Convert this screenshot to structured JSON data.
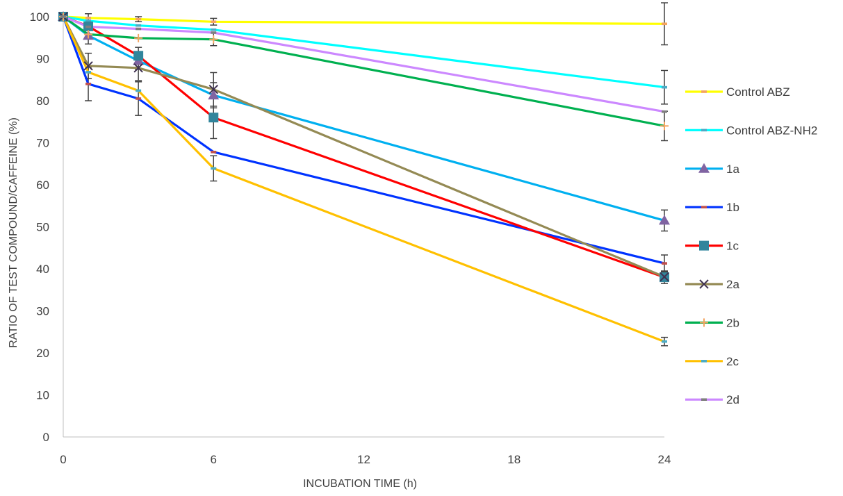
{
  "chart_data": {
    "type": "line",
    "title": "",
    "xlabel": "INCUBATION TIME (h)",
    "ylabel": "RATIO OF TEST COMPOUND/CAFFEINE (%)",
    "xlim": [
      0,
      24
    ],
    "ylim": [
      0,
      100
    ],
    "xticks": [
      0,
      6,
      12,
      18,
      24
    ],
    "yticks": [
      0,
      10,
      20,
      30,
      40,
      50,
      60,
      70,
      80,
      90,
      100
    ],
    "grid": false,
    "legend_position": "right",
    "x": [
      0,
      1,
      3,
      6,
      24
    ],
    "series": [
      {
        "name": "Control ABZ",
        "color": "#FFFF00",
        "marker": "dash",
        "marker_color": "#F4A460",
        "values": [
          100,
          99.7,
          99.4,
          98.8,
          98.3
        ],
        "errors": [
          0,
          0,
          0.6,
          0.8,
          5
        ]
      },
      {
        "name": "Control ABZ-NH2",
        "color": "#00FFFF",
        "marker": "dash",
        "marker_color": "#4BACC6",
        "values": [
          100,
          99,
          97.9,
          96.9,
          83.2
        ],
        "errors": [
          0,
          0,
          0,
          0,
          4
        ]
      },
      {
        "name": "1a",
        "color": "#00B0F0",
        "marker": "triangle",
        "marker_color": "#8064A2",
        "values": [
          100,
          95.5,
          89.5,
          81.3,
          51.5
        ],
        "errors": [
          0,
          2,
          2,
          3,
          2.5
        ]
      },
      {
        "name": "1b",
        "color": "#0033FF",
        "marker": "dash",
        "marker_color": "#C0504D",
        "values": [
          100,
          84,
          80.5,
          67.8,
          41.3
        ],
        "errors": [
          0,
          4,
          4,
          0,
          2
        ]
      },
      {
        "name": "1c",
        "color": "#FF0000",
        "marker": "square",
        "marker_color": "#31859C",
        "values": [
          100,
          97.7,
          90.7,
          76,
          38
        ],
        "errors": [
          0,
          3,
          2,
          5,
          1.5
        ]
      },
      {
        "name": "2a",
        "color": "#948A54",
        "marker": "x",
        "marker_color": "#3F3151",
        "values": [
          100,
          88.3,
          87.8,
          82.7,
          38.1
        ],
        "errors": [
          0,
          3,
          3,
          4,
          1
        ]
      },
      {
        "name": "2b",
        "color": "#00B050",
        "marker": "plus",
        "marker_color": "#F4A460",
        "values": [
          100,
          95.8,
          94.9,
          94.6,
          74
        ],
        "errors": [
          0,
          0,
          0,
          1.5,
          3.5
        ]
      },
      {
        "name": "2c",
        "color": "#FFC000",
        "marker": "dash",
        "marker_color": "#4BACC6",
        "values": [
          100,
          86.8,
          82.4,
          63.9,
          22.7
        ],
        "errors": [
          0,
          0,
          0,
          3,
          1
        ]
      },
      {
        "name": "2d",
        "color": "#CC88FF",
        "marker": "dash",
        "marker_color": "#7F7F7F",
        "values": [
          100,
          97.6,
          97.1,
          96.2,
          77.4
        ],
        "errors": [
          0,
          0,
          0,
          0,
          0
        ]
      }
    ]
  }
}
